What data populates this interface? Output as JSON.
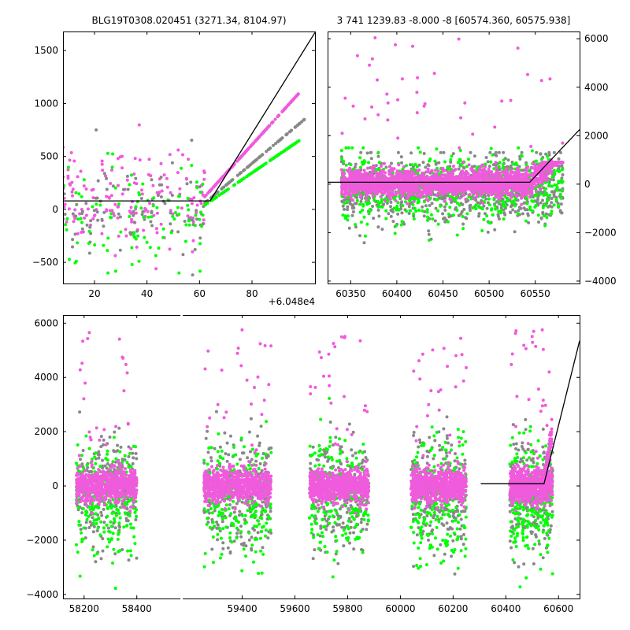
{
  "chart_data": [
    {
      "type": "scatter",
      "panel": "top-left",
      "title": "BLG19T0308.020451 (3271.34, 8104.97)",
      "offset_label": "+6.048e4",
      "xlim": [
        8,
        104
      ],
      "ylim": [
        -700,
        1680
      ],
      "xticks": [
        20,
        40,
        60,
        80
      ],
      "yticks": [
        -500,
        0,
        500,
        1000,
        1500
      ],
      "y_axis_side": "left",
      "point_seed": 11,
      "series": [
        {
          "color": "#f05adc",
          "count": 330,
          "segments": [
            [
              8,
              62,
              130,
              230,
              -560,
              920
            ],
            [
              62,
              98,
              0,
              0,
              -400,
              1650
            ]
          ],
          "trend": [
            [
              62,
              120,
              98,
              1100
            ]
          ]
        },
        {
          "color": "#888888",
          "count": 190,
          "segments": [
            [
              8,
              62,
              -30,
              260,
              -650,
              750
            ],
            [
              62,
              100,
              0,
              0,
              -600,
              1400
            ]
          ],
          "trend": [
            [
              62,
              60,
              100,
              850
            ]
          ]
        },
        {
          "color": "#00ff00",
          "count": 210,
          "segments": [
            [
              8,
              62,
              -60,
              260,
              -600,
              700
            ],
            [
              62,
              98,
              0,
              0,
              -600,
              1300
            ]
          ],
          "trend": [
            [
              62,
              40,
              98,
              650
            ]
          ]
        }
      ],
      "model_line": [
        [
          8,
          80
        ],
        [
          64,
          80
        ],
        [
          104,
          1670
        ]
      ]
    },
    {
      "type": "scatter",
      "panel": "top-right",
      "title": "3 741 1239.83 -8.000 -8 [60574.360, 60575.938]",
      "xlim": [
        60325,
        60598
      ],
      "ylim": [
        -4100,
        6300
      ],
      "xticks": [
        60350,
        60400,
        60450,
        60500,
        60550
      ],
      "yticks": [
        -4000,
        -2000,
        0,
        2000,
        4000,
        6000
      ],
      "y_axis_side": "right",
      "point_seed": 23,
      "series": [
        {
          "color": "#888888",
          "count": 900,
          "segments": [
            [
              60340,
              60580,
              -200,
              700,
              -4000,
              1300
            ]
          ]
        },
        {
          "color": "#00ff00",
          "count": 650,
          "segments": [
            [
              60340,
              60580,
              -200,
              700,
              -4000,
              1500
            ]
          ]
        },
        {
          "color": "#f05adc",
          "count": 2200,
          "segments": [
            [
              60340,
              60580,
              40,
              260,
              -900,
              900
            ]
          ],
          "ramp": [
            60545,
            60580,
            0,
            1600
          ],
          "outliers": 40
        }
      ],
      "model_line": [
        [
          60325,
          80
        ],
        [
          60544,
          80
        ],
        [
          60598,
          2250
        ]
      ]
    },
    {
      "type": "scatter",
      "panel": "bottom",
      "xlim": [
        58120,
        60680
      ],
      "ylim": [
        -4150,
        6300
      ],
      "xticks": [
        58200,
        58400,
        59400,
        59600,
        59800,
        60000,
        60200,
        60400,
        60600
      ],
      "yticks": [
        -4000,
        -2000,
        0,
        2000,
        4000,
        6000
      ],
      "broken_axis_at": 58520,
      "axis_break": [
        58520,
        59220,
        100
      ],
      "y_axis_side": "left",
      "point_seed": 37,
      "seasons": [
        [
          58170,
          58400
        ],
        [
          59255,
          59510
        ],
        [
          59655,
          59880
        ],
        [
          60040,
          60250
        ],
        [
          60415,
          60578
        ]
      ],
      "series": [
        {
          "color": "#888888",
          "count_per_season": 260,
          "spread": [
            -300,
            1000
          ],
          "range": [
            -4100,
            4800
          ]
        },
        {
          "color": "#00ff00",
          "count_per_season": 230,
          "spread": [
            -500,
            1100
          ],
          "range": [
            -4100,
            4800
          ]
        },
        {
          "color": "#f05adc",
          "count_per_season": 700,
          "spread": [
            0,
            300
          ],
          "range": [
            -1000,
            900
          ],
          "outliers": 25
        }
      ],
      "model_line": [
        [
          60305,
          80
        ],
        [
          60545,
          80
        ],
        [
          60680,
          5350
        ]
      ]
    }
  ]
}
